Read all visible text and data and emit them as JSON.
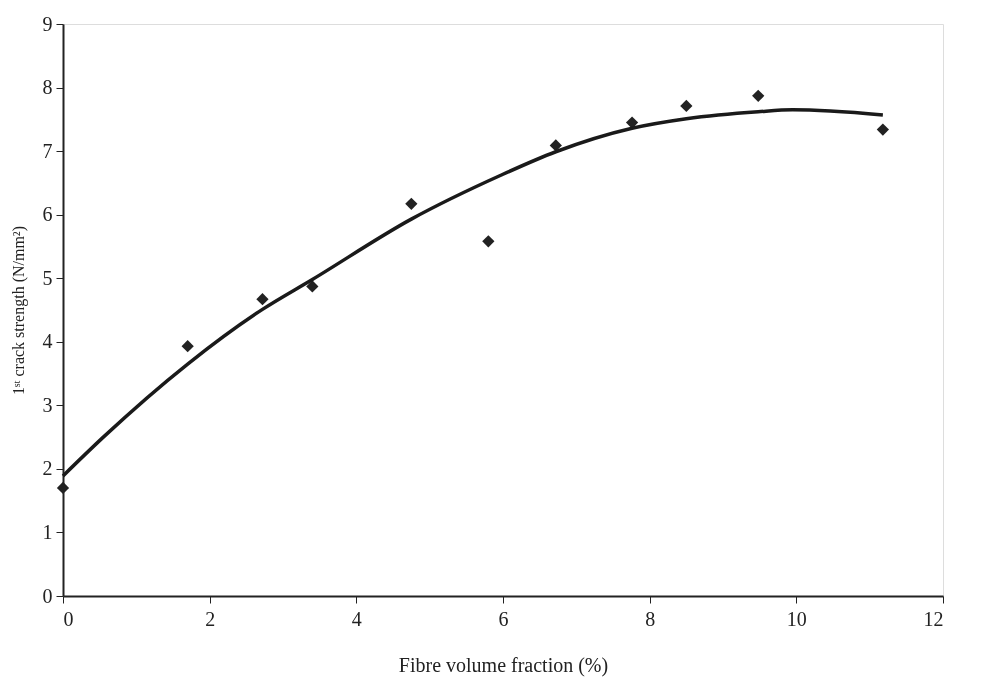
{
  "chart_data": {
    "type": "scatter",
    "xlabel": "Fibre volume fraction (%)",
    "ylabel": "1ˢᵗ crack strength (N/mm²)",
    "xlim": [
      0,
      12
    ],
    "xticks": [
      0,
      2,
      4,
      6,
      8,
      10,
      12
    ],
    "ylim": [
      0,
      9
    ],
    "yticks": [
      0,
      1,
      2,
      3,
      4,
      5,
      6,
      7,
      8,
      9
    ],
    "grid": false,
    "series": [
      {
        "color": "#222222",
        "marker": "diamond",
        "x": [
          0,
          1.7,
          2.72,
          3.4,
          4.75,
          5.8,
          6.72,
          7.76,
          8.5,
          9.48,
          11.18
        ],
        "values": [
          1.7,
          3.93,
          4.67,
          4.87,
          6.17,
          5.58,
          7.09,
          7.45,
          7.71,
          7.87,
          7.34
        ]
      },
      {
        "type": "line",
        "color": "#1a1a1a",
        "line_style": "solid",
        "marker": "none",
        "x": [
          0,
          0.55,
          1.7,
          2.72,
          3.4,
          4.75,
          5.97,
          6.72,
          7.76,
          8.5,
          9.48,
          9.95,
          11.18
        ],
        "values": [
          1.89,
          2.5,
          3.65,
          4.51,
          4.98,
          5.93,
          6.62,
          6.99,
          7.36,
          7.51,
          7.62,
          7.65,
          7.57
        ]
      }
    ]
  }
}
